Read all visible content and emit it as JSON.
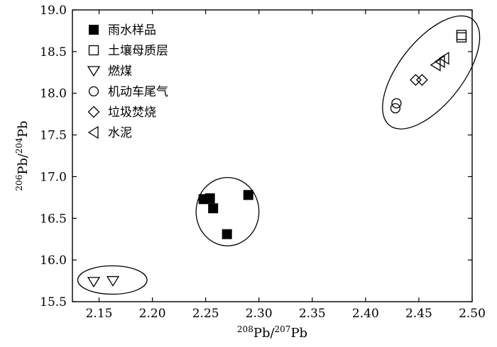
{
  "chart_data": {
    "type": "scatter",
    "xlabel": "208Pb/207Pb",
    "ylabel": "206Pb/204Pb",
    "xlabel_parts": {
      "sup": "208",
      "base": "Pb/",
      "sup2": "207",
      "base2": "Pb"
    },
    "ylabel_parts": {
      "sup": "206",
      "base": "Pb/",
      "sup2": "204",
      "base2": "Pb"
    },
    "xlim": [
      2.125,
      2.5
    ],
    "ylim": [
      15.5,
      19.0
    ],
    "xticks": [
      "2.15",
      "2.20",
      "2.25",
      "2.30",
      "2.35",
      "2.40",
      "2.45",
      "2.50"
    ],
    "yticks": [
      "15.5",
      "16.0",
      "16.5",
      "17.0",
      "17.5",
      "18.0",
      "18.5",
      "19.0"
    ],
    "grid": false,
    "legend_position": "top-left",
    "series": [
      {
        "name": "雨水样品",
        "marker": "filled-square",
        "points": [
          [
            2.248,
            16.73
          ],
          [
            2.254,
            16.74
          ],
          [
            2.257,
            16.62
          ],
          [
            2.27,
            16.31
          ],
          [
            2.29,
            16.78
          ]
        ]
      },
      {
        "name": "土壤母质层",
        "marker": "open-square",
        "points": [
          [
            2.49,
            18.67
          ],
          [
            2.49,
            18.7
          ]
        ]
      },
      {
        "name": "燃煤",
        "marker": "open-triangle-down",
        "points": [
          [
            2.145,
            15.74
          ],
          [
            2.163,
            15.75
          ]
        ]
      },
      {
        "name": "机动车尾气",
        "marker": "open-circle",
        "points": [
          [
            2.428,
            17.82
          ],
          [
            2.429,
            17.88
          ]
        ]
      },
      {
        "name": "垃圾焚烧",
        "marker": "open-diamond",
        "points": [
          [
            2.447,
            18.16
          ],
          [
            2.453,
            18.16
          ]
        ]
      },
      {
        "name": "水泥",
        "marker": "open-triangle-left",
        "points": [
          [
            2.466,
            18.34
          ],
          [
            2.47,
            18.38
          ],
          [
            2.474,
            18.42
          ]
        ]
      }
    ],
    "group_ellipses": [
      {
        "center": [
          2.2705,
          16.58
        ],
        "radius_x": 0.0295,
        "radius_y": 0.41
      },
      {
        "center": [
          2.1625,
          15.76
        ],
        "radius_x": 0.0325,
        "radius_y": 0.17
      },
      {
        "center": [
          2.4615,
          18.25
        ],
        "radius_x": 0.0355,
        "radius_y": 0.62,
        "rotation_deg": -52
      }
    ]
  }
}
